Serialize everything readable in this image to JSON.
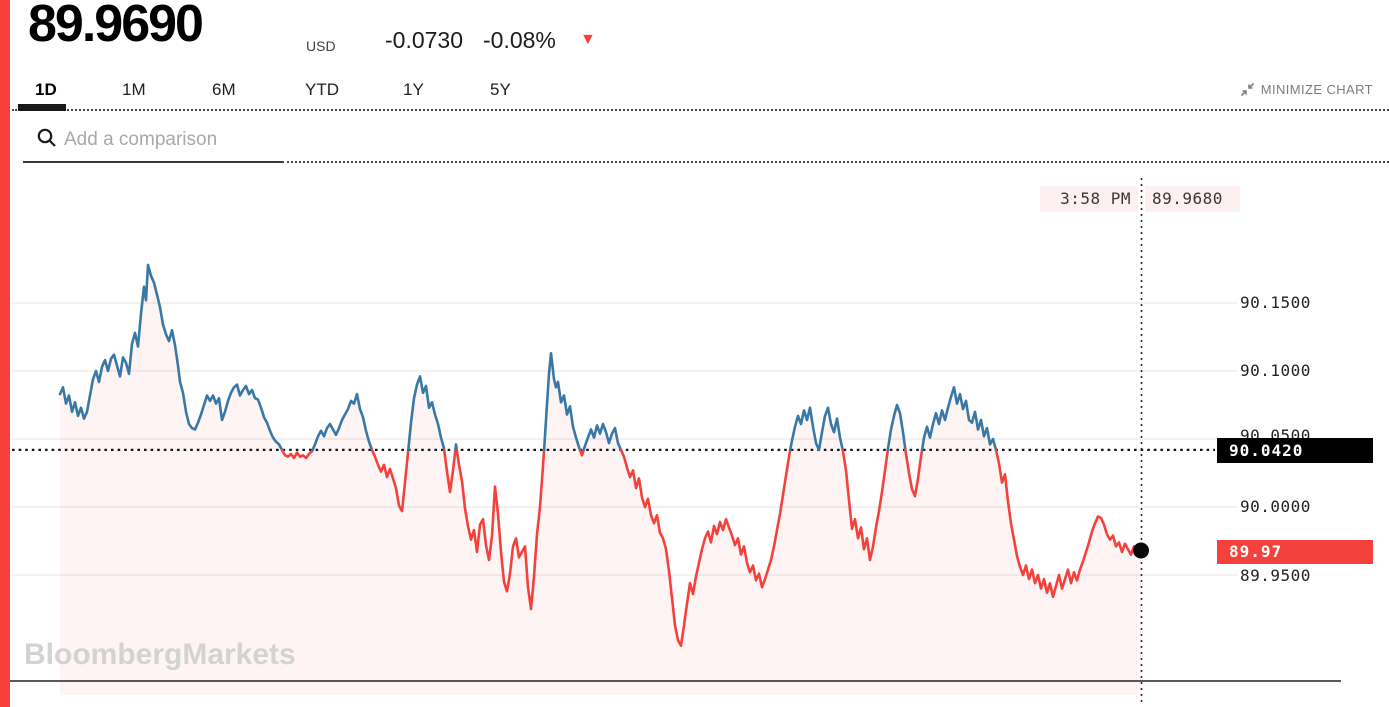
{
  "header": {
    "price": "89.9690",
    "currency": "USD",
    "change": "-0.0730",
    "change_pct": "-0.08%",
    "direction_arrow": "▼"
  },
  "tabs": {
    "items": [
      "1D",
      "1M",
      "6M",
      "YTD",
      "1Y",
      "5Y"
    ],
    "active": "1D"
  },
  "toolbar": {
    "minimize_label": "MINIMIZE CHART"
  },
  "search": {
    "placeholder": "Add a comparison",
    "value": ""
  },
  "watermark": "BloombergMarkets",
  "crosshair": {
    "time": "3:58 PM",
    "value": "89.9680"
  },
  "colors": {
    "up": "#3878a7",
    "down": "#f5413c",
    "accent": "#f5413c",
    "fill": "rgba(244,63,60,0.06)",
    "grid": "#e9e9e9",
    "threshold_line": "#151515",
    "crosshair": "#2a2a2a",
    "axis": "#222222",
    "label_black_bg": "#000000",
    "label_red_bg": "#f5413c",
    "tooltip_bg": "#fcf1f0"
  },
  "chart_data": {
    "type": "line",
    "title": "",
    "xlabel": "",
    "ylabel": "",
    "x_unit": "intraday time (1D, axis unlabeled)",
    "grid": true,
    "legend": false,
    "ylim": [
      89.88,
      90.2
    ],
    "yticks": [
      90.15,
      90.1,
      90.05,
      90.0,
      89.95
    ],
    "ytick_labels": [
      "90.1500",
      "90.1000",
      "90.0500",
      "90.0000",
      "89.9500"
    ],
    "threshold": 90.042,
    "threshold_label": "90.0420",
    "last_value": 89.968,
    "last_label": "89.97",
    "last_time": "3:58 PM",
    "crosshair_value_label": "89.9680",
    "points": [
      [
        60,
        90.083
      ],
      [
        63,
        90.088
      ],
      [
        66,
        90.076
      ],
      [
        69,
        90.082
      ],
      [
        72,
        90.07
      ],
      [
        75,
        90.077
      ],
      [
        78,
        90.067
      ],
      [
        81,
        90.073
      ],
      [
        84,
        90.065
      ],
      [
        87,
        90.07
      ],
      [
        90,
        90.082
      ],
      [
        93,
        90.094
      ],
      [
        96,
        90.1
      ],
      [
        99,
        90.092
      ],
      [
        102,
        90.103
      ],
      [
        105,
        90.108
      ],
      [
        108,
        90.1
      ],
      [
        111,
        90.109
      ],
      [
        114,
        90.112
      ],
      [
        117,
        90.104
      ],
      [
        120,
        90.096
      ],
      [
        123,
        90.11
      ],
      [
        126,
        90.106
      ],
      [
        129,
        90.098
      ],
      [
        132,
        90.12
      ],
      [
        135,
        90.128
      ],
      [
        138,
        90.118
      ],
      [
        141,
        90.142
      ],
      [
        144,
        90.162
      ],
      [
        146,
        90.152
      ],
      [
        148,
        90.178
      ],
      [
        151,
        90.17
      ],
      [
        154,
        90.165
      ],
      [
        157,
        90.156
      ],
      [
        160,
        90.147
      ],
      [
        163,
        90.134
      ],
      [
        166,
        90.127
      ],
      [
        169,
        90.122
      ],
      [
        172,
        90.13
      ],
      [
        175,
        90.119
      ],
      [
        178,
        90.104
      ],
      [
        180,
        90.092
      ],
      [
        183,
        90.084
      ],
      [
        186,
        90.07
      ],
      [
        189,
        90.061
      ],
      [
        192,
        90.058
      ],
      [
        195,
        90.057
      ],
      [
        198,
        90.062
      ],
      [
        201,
        90.068
      ],
      [
        204,
        90.075
      ],
      [
        207,
        90.082
      ],
      [
        210,
        90.078
      ],
      [
        213,
        90.082
      ],
      [
        216,
        90.076
      ],
      [
        219,
        90.08
      ],
      [
        222,
        90.064
      ],
      [
        225,
        90.07
      ],
      [
        228,
        90.078
      ],
      [
        231,
        90.084
      ],
      [
        234,
        90.088
      ],
      [
        237,
        90.09
      ],
      [
        240,
        90.082
      ],
      [
        243,
        90.086
      ],
      [
        246,
        90.089
      ],
      [
        249,
        90.083
      ],
      [
        252,
        90.086
      ],
      [
        255,
        90.08
      ],
      [
        258,
        90.079
      ],
      [
        261,
        90.073
      ],
      [
        264,
        90.066
      ],
      [
        267,
        90.062
      ],
      [
        270,
        90.056
      ],
      [
        273,
        90.051
      ],
      [
        276,
        90.048
      ],
      [
        279,
        90.046
      ],
      [
        282,
        90.042
      ],
      [
        285,
        90.038
      ],
      [
        288,
        90.037
      ],
      [
        291,
        90.039
      ],
      [
        294,
        90.036
      ],
      [
        297,
        90.04
      ],
      [
        300,
        90.037
      ],
      [
        303,
        90.038
      ],
      [
        306,
        90.036
      ],
      [
        309,
        90.039
      ],
      [
        312,
        90.041
      ],
      [
        315,
        90.046
      ],
      [
        318,
        90.052
      ],
      [
        321,
        90.056
      ],
      [
        324,
        90.052
      ],
      [
        327,
        90.058
      ],
      [
        330,
        90.061
      ],
      [
        333,
        90.057
      ],
      [
        336,
        90.053
      ],
      [
        339,
        90.058
      ],
      [
        342,
        90.064
      ],
      [
        345,
        90.068
      ],
      [
        348,
        90.072
      ],
      [
        351,
        90.078
      ],
      [
        354,
        90.076
      ],
      [
        357,
        90.083
      ],
      [
        360,
        90.072
      ],
      [
        363,
        90.066
      ],
      [
        366,
        90.056
      ],
      [
        369,
        90.048
      ],
      [
        372,
        90.042
      ],
      [
        375,
        90.037
      ],
      [
        378,
        90.031
      ],
      [
        381,
        90.026
      ],
      [
        384,
        90.031
      ],
      [
        387,
        90.022
      ],
      [
        390,
        90.028
      ],
      [
        393,
        90.021
      ],
      [
        396,
        90.014
      ],
      [
        399,
        90.001
      ],
      [
        402,
        89.997
      ],
      [
        405,
        90.018
      ],
      [
        408,
        90.04
      ],
      [
        411,
        90.062
      ],
      [
        414,
        90.08
      ],
      [
        417,
        90.09
      ],
      [
        420,
        90.096
      ],
      [
        423,
        90.084
      ],
      [
        426,
        90.089
      ],
      [
        429,
        90.073
      ],
      [
        432,
        90.077
      ],
      [
        435,
        90.068
      ],
      [
        438,
        90.061
      ],
      [
        441,
        90.051
      ],
      [
        444,
        90.043
      ],
      [
        447,
        90.026
      ],
      [
        450,
        90.011
      ],
      [
        453,
        90.027
      ],
      [
        456,
        90.046
      ],
      [
        459,
        90.031
      ],
      [
        462,
        90.019
      ],
      [
        465,
        89.999
      ],
      [
        468,
        89.986
      ],
      [
        471,
        89.976
      ],
      [
        474,
        89.983
      ],
      [
        477,
        89.967
      ],
      [
        480,
        89.987
      ],
      [
        483,
        89.991
      ],
      [
        486,
        89.972
      ],
      [
        489,
        89.961
      ],
      [
        492,
        89.979
      ],
      [
        495,
        90.015
      ],
      [
        498,
        89.995
      ],
      [
        501,
        89.967
      ],
      [
        504,
        89.945
      ],
      [
        507,
        89.938
      ],
      [
        510,
        89.951
      ],
      [
        513,
        89.971
      ],
      [
        516,
        89.977
      ],
      [
        519,
        89.963
      ],
      [
        522,
        89.967
      ],
      [
        525,
        89.971
      ],
      [
        528,
        89.941
      ],
      [
        531,
        89.925
      ],
      [
        534,
        89.949
      ],
      [
        537,
        89.98
      ],
      [
        540,
        90.0
      ],
      [
        543,
        90.03
      ],
      [
        546,
        90.064
      ],
      [
        549,
        90.098
      ],
      [
        551,
        90.113
      ],
      [
        554,
        90.094
      ],
      [
        556,
        90.088
      ],
      [
        558,
        90.092
      ],
      [
        561,
        90.077
      ],
      [
        564,
        90.082
      ],
      [
        567,
        90.068
      ],
      [
        570,
        90.074
      ],
      [
        573,
        90.059
      ],
      [
        576,
        90.051
      ],
      [
        579,
        90.044
      ],
      [
        582,
        90.038
      ],
      [
        585,
        90.045
      ],
      [
        588,
        90.051
      ],
      [
        591,
        90.057
      ],
      [
        594,
        90.051
      ],
      [
        597,
        90.06
      ],
      [
        600,
        90.054
      ],
      [
        603,
        90.061
      ],
      [
        606,
        90.055
      ],
      [
        609,
        90.047
      ],
      [
        612,
        90.054
      ],
      [
        615,
        90.058
      ],
      [
        618,
        90.047
      ],
      [
        621,
        90.042
      ],
      [
        624,
        90.037
      ],
      [
        627,
        90.029
      ],
      [
        630,
        90.022
      ],
      [
        633,
        90.027
      ],
      [
        636,
        90.014
      ],
      [
        639,
        90.021
      ],
      [
        642,
        90.007
      ],
      [
        645,
        90.0
      ],
      [
        648,
        90.006
      ],
      [
        651,
        89.994
      ],
      [
        654,
        89.988
      ],
      [
        657,
        89.994
      ],
      [
        660,
        89.981
      ],
      [
        663,
        89.977
      ],
      [
        666,
        89.969
      ],
      [
        669,
        89.953
      ],
      [
        672,
        89.933
      ],
      [
        675,
        89.913
      ],
      [
        678,
        89.902
      ],
      [
        681,
        89.898
      ],
      [
        684,
        89.913
      ],
      [
        687,
        89.929
      ],
      [
        690,
        89.944
      ],
      [
        693,
        89.936
      ],
      [
        696,
        89.949
      ],
      [
        699,
        89.959
      ],
      [
        702,
        89.969
      ],
      [
        705,
        89.977
      ],
      [
        708,
        89.982
      ],
      [
        711,
        89.974
      ],
      [
        714,
        89.986
      ],
      [
        717,
        89.98
      ],
      [
        720,
        89.989
      ],
      [
        723,
        89.983
      ],
      [
        726,
        89.991
      ],
      [
        729,
        89.985
      ],
      [
        732,
        89.979
      ],
      [
        735,
        89.972
      ],
      [
        738,
        89.977
      ],
      [
        741,
        89.965
      ],
      [
        744,
        89.971
      ],
      [
        747,
        89.959
      ],
      [
        750,
        89.952
      ],
      [
        753,
        89.957
      ],
      [
        756,
        89.946
      ],
      [
        759,
        89.951
      ],
      [
        762,
        89.941
      ],
      [
        765,
        89.947
      ],
      [
        768,
        89.954
      ],
      [
        771,
        89.961
      ],
      [
        774,
        89.971
      ],
      [
        777,
        89.983
      ],
      [
        780,
        89.995
      ],
      [
        783,
        90.009
      ],
      [
        786,
        90.023
      ],
      [
        789,
        90.037
      ],
      [
        792,
        90.049
      ],
      [
        795,
        90.059
      ],
      [
        798,
        90.067
      ],
      [
        801,
        90.061
      ],
      [
        804,
        90.071
      ],
      [
        807,
        90.064
      ],
      [
        810,
        90.073
      ],
      [
        813,
        90.059
      ],
      [
        816,
        90.047
      ],
      [
        819,
        90.042
      ],
      [
        822,
        90.055
      ],
      [
        825,
        90.067
      ],
      [
        828,
        90.073
      ],
      [
        831,
        90.061
      ],
      [
        834,
        90.055
      ],
      [
        837,
        90.065
      ],
      [
        840,
        90.051
      ],
      [
        843,
        90.041
      ],
      [
        846,
        90.027
      ],
      [
        849,
        90.005
      ],
      [
        852,
        89.984
      ],
      [
        855,
        89.991
      ],
      [
        858,
        89.977
      ],
      [
        861,
        89.985
      ],
      [
        864,
        89.969
      ],
      [
        867,
        89.977
      ],
      [
        870,
        89.961
      ],
      [
        873,
        89.971
      ],
      [
        876,
        89.985
      ],
      [
        879,
        89.997
      ],
      [
        882,
        90.011
      ],
      [
        885,
        90.027
      ],
      [
        888,
        90.043
      ],
      [
        891,
        90.057
      ],
      [
        894,
        90.067
      ],
      [
        897,
        90.075
      ],
      [
        900,
        90.069
      ],
      [
        903,
        90.055
      ],
      [
        906,
        90.039
      ],
      [
        909,
        90.025
      ],
      [
        912,
        90.013
      ],
      [
        915,
        90.008
      ],
      [
        918,
        90.021
      ],
      [
        921,
        90.037
      ],
      [
        924,
        90.051
      ],
      [
        927,
        90.059
      ],
      [
        930,
        90.051
      ],
      [
        933,
        90.061
      ],
      [
        936,
        90.069
      ],
      [
        939,
        90.061
      ],
      [
        942,
        90.071
      ],
      [
        945,
        90.064
      ],
      [
        948,
        90.073
      ],
      [
        951,
        90.081
      ],
      [
        954,
        90.088
      ],
      [
        957,
        90.076
      ],
      [
        960,
        90.083
      ],
      [
        963,
        90.072
      ],
      [
        966,
        90.078
      ],
      [
        969,
        90.064
      ],
      [
        972,
        90.062
      ],
      [
        975,
        90.07
      ],
      [
        978,
        90.057
      ],
      [
        981,
        90.064
      ],
      [
        984,
        90.052
      ],
      [
        987,
        90.058
      ],
      [
        990,
        90.046
      ],
      [
        993,
        90.05
      ],
      [
        996,
        90.042
      ],
      [
        999,
        90.032
      ],
      [
        1002,
        90.018
      ],
      [
        1005,
        90.024
      ],
      [
        1008,
        90.004
      ],
      [
        1011,
        89.988
      ],
      [
        1014,
        89.976
      ],
      [
        1017,
        89.964
      ],
      [
        1020,
        89.956
      ],
      [
        1023,
        89.95
      ],
      [
        1026,
        89.957
      ],
      [
        1029,
        89.947
      ],
      [
        1032,
        89.954
      ],
      [
        1035,
        89.944
      ],
      [
        1038,
        89.95
      ],
      [
        1041,
        89.94
      ],
      [
        1044,
        89.947
      ],
      [
        1047,
        89.937
      ],
      [
        1050,
        89.944
      ],
      [
        1053,
        89.934
      ],
      [
        1056,
        89.942
      ],
      [
        1059,
        89.95
      ],
      [
        1062,
        89.94
      ],
      [
        1065,
        89.947
      ],
      [
        1068,
        89.954
      ],
      [
        1071,
        89.944
      ],
      [
        1074,
        89.952
      ],
      [
        1077,
        89.946
      ],
      [
        1080,
        89.954
      ],
      [
        1083,
        89.96
      ],
      [
        1086,
        89.967
      ],
      [
        1089,
        89.974
      ],
      [
        1092,
        89.982
      ],
      [
        1095,
        89.988
      ],
      [
        1098,
        89.993
      ],
      [
        1101,
        89.992
      ],
      [
        1104,
        89.987
      ],
      [
        1107,
        89.98
      ],
      [
        1110,
        89.976
      ],
      [
        1113,
        89.979
      ],
      [
        1116,
        89.971
      ],
      [
        1119,
        89.974
      ],
      [
        1122,
        89.967
      ],
      [
        1125,
        89.973
      ],
      [
        1128,
        89.969
      ],
      [
        1131,
        89.965
      ],
      [
        1134,
        89.971
      ],
      [
        1137,
        89.967
      ],
      [
        1141,
        89.968
      ]
    ]
  }
}
